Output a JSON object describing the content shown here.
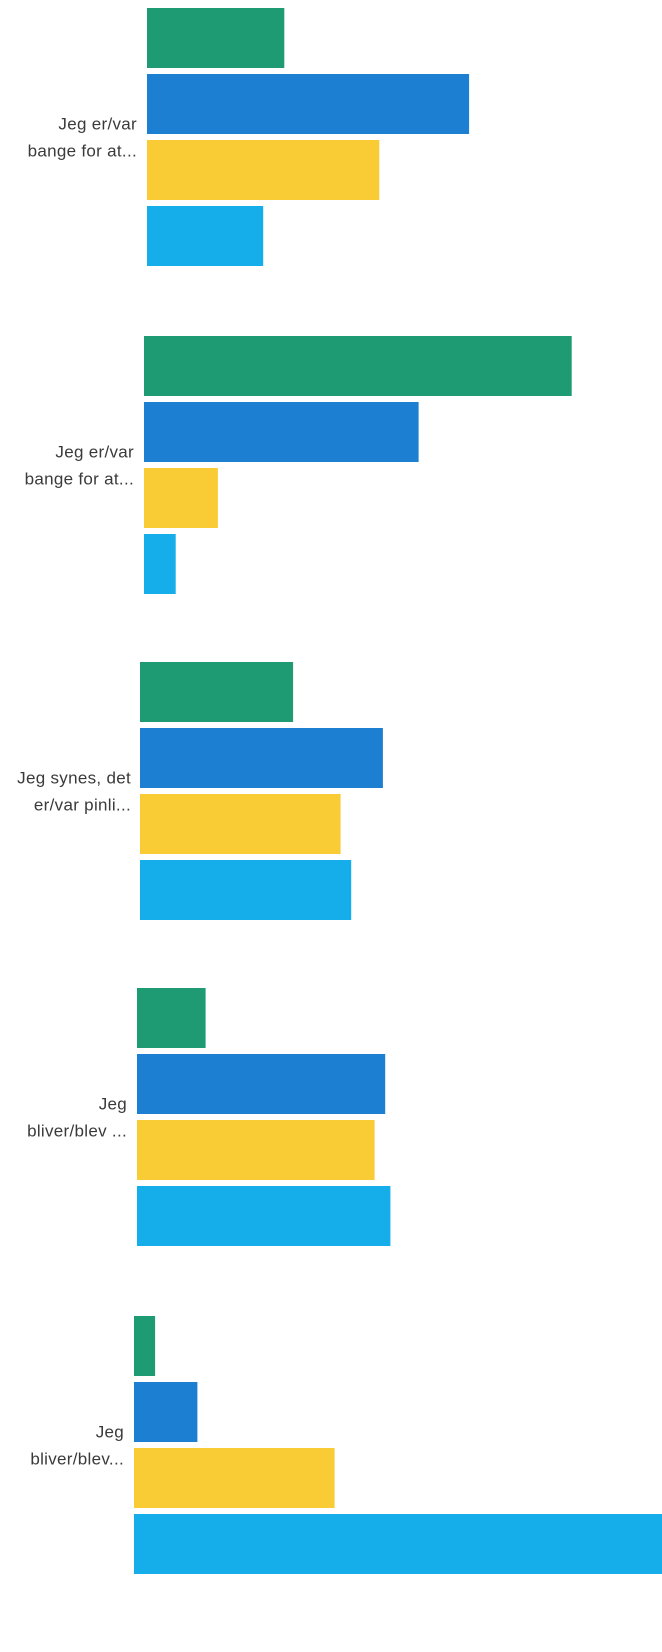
{
  "chart_data": {
    "type": "bar",
    "orientation": "horizontal",
    "title": "",
    "xlabel": "",
    "ylabel": "",
    "grid": false,
    "legend": "none",
    "categories": [
      {
        "label_lines": [
          "Jeg er/var",
          "bange for at..."
        ]
      },
      {
        "label_lines": [
          "Jeg er/var",
          "bange for at..."
        ]
      },
      {
        "label_lines": [
          "Jeg synes, det",
          "er/var pinli..."
        ]
      },
      {
        "label_lines": [
          "Jeg",
          "bliver/blev ..."
        ]
      },
      {
        "label_lines": [
          "Jeg",
          "bliver/blev..."
        ]
      }
    ],
    "series": [
      {
        "color": "#1e9b73",
        "values": [
          26,
          81,
          29,
          13,
          4
        ]
      },
      {
        "color": "#1c7fd1",
        "values": [
          61,
          52,
          46,
          47,
          12
        ]
      },
      {
        "color": "#f9cc36",
        "values": [
          44,
          14,
          38,
          45,
          38
        ]
      },
      {
        "color": "#16aeea",
        "values": [
          22,
          6,
          40,
          48,
          100
        ]
      }
    ],
    "xlim": [
      0,
      100
    ]
  }
}
